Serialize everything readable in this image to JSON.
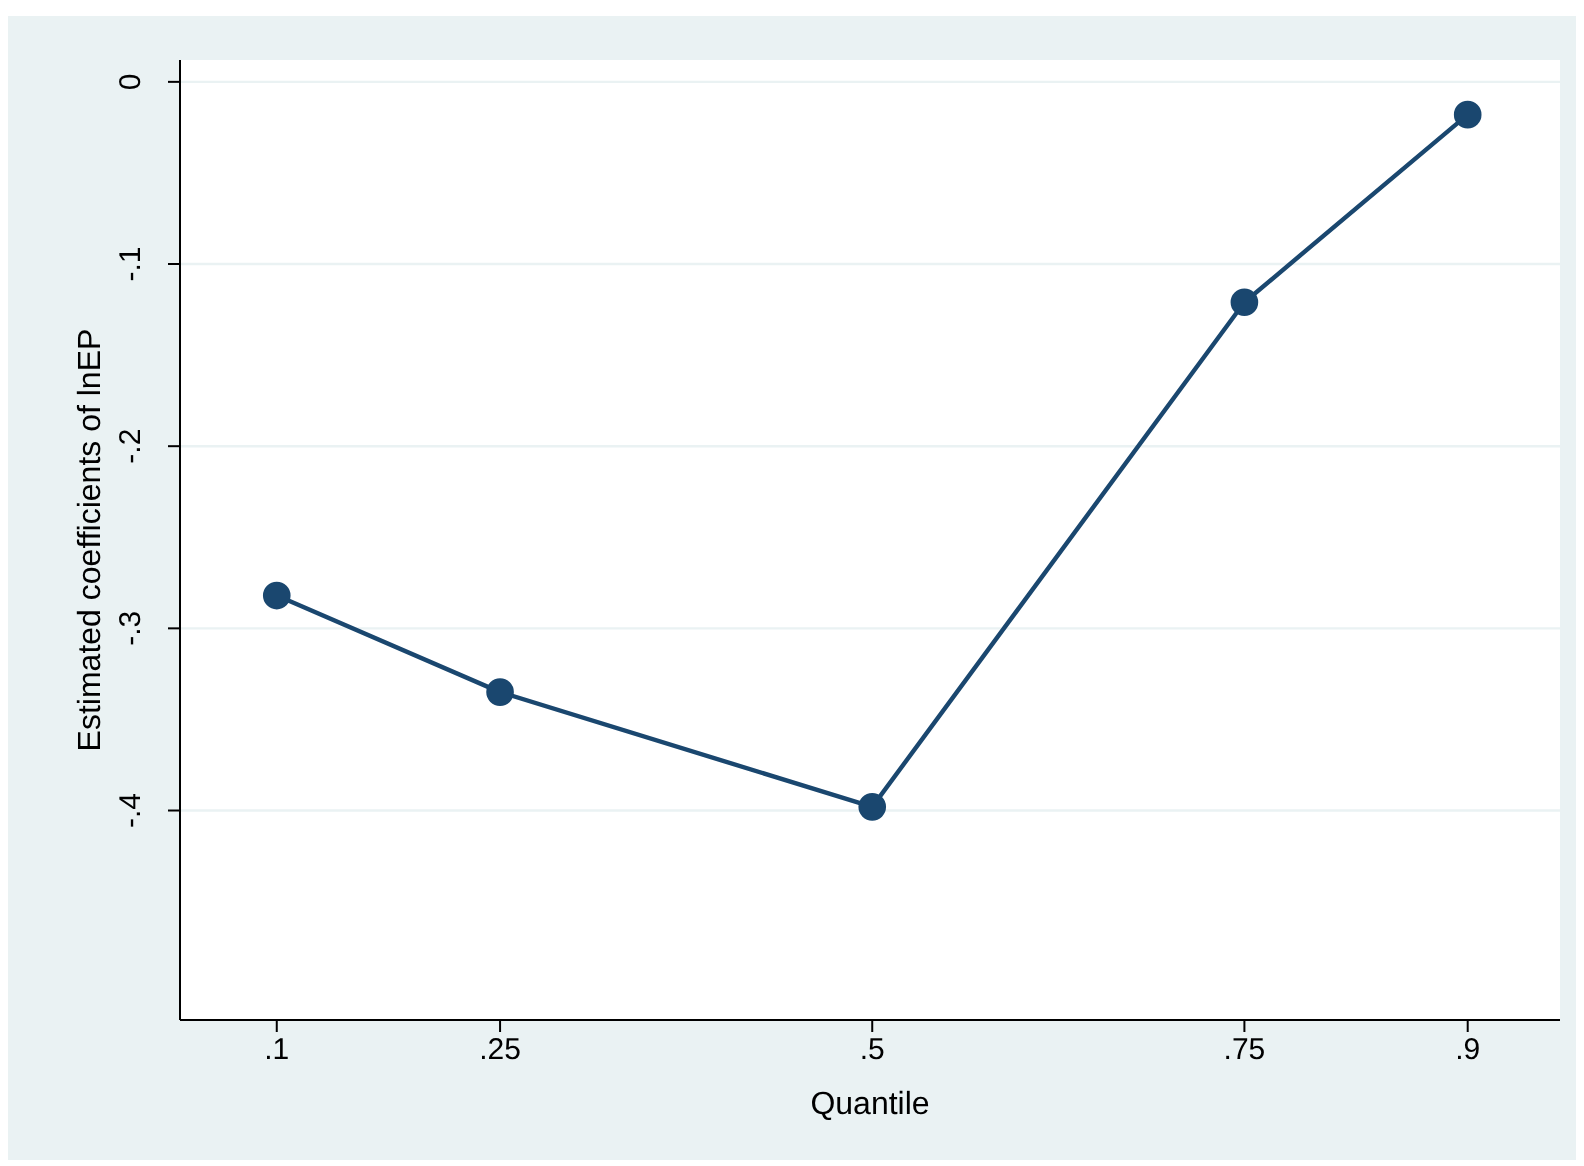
{
  "chart_data": {
    "type": "line",
    "xlabel": "Quantile",
    "ylabel": "Estimated coefficients of lnEP",
    "x": [
      0.1,
      0.25,
      0.5,
      0.75,
      0.9
    ],
    "series": [
      {
        "color": "#1a476f",
        "values": [
          -0.282,
          -0.335,
          -0.398,
          -0.121,
          -0.018
        ]
      }
    ],
    "xlim": [
      0.035,
      0.962
    ],
    "ylim": [
      -0.515,
      0.012
    ],
    "xticks": [
      {
        "value": 0.1,
        "label": ".1"
      },
      {
        "value": 0.25,
        "label": ".25"
      },
      {
        "value": 0.5,
        "label": ".5"
      },
      {
        "value": 0.75,
        "label": ".75"
      },
      {
        "value": 0.9,
        "label": ".9"
      }
    ],
    "yticks": [
      {
        "value": 0,
        "label": "0"
      },
      {
        "value": -0.1,
        "label": "-.1"
      },
      {
        "value": -0.2,
        "label": "-.2"
      },
      {
        "value": -0.3,
        "label": "-.3"
      },
      {
        "value": -0.4,
        "label": "-.4"
      }
    ],
    "grid": "y",
    "marker": "circle",
    "line_style": "solid"
  }
}
